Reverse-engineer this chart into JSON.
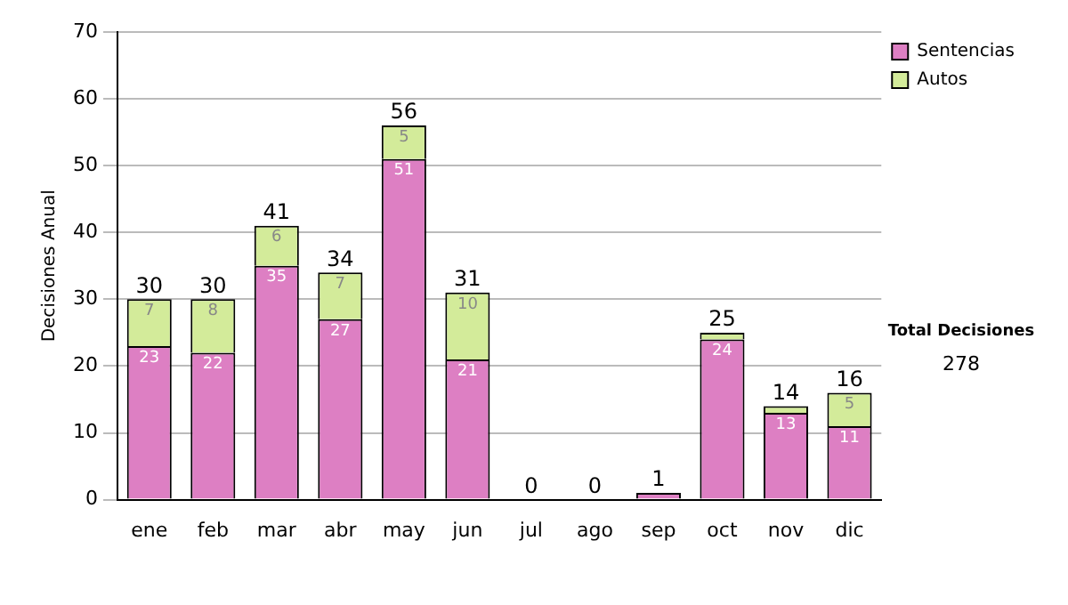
{
  "chart_data": {
    "type": "bar",
    "stacked": true,
    "ylabel": "Decisiones Anual",
    "categories": [
      "ene",
      "feb",
      "mar",
      "abr",
      "may",
      "jun",
      "jul",
      "ago",
      "sep",
      "oct",
      "nov",
      "dic"
    ],
    "series": [
      {
        "name": "Sentencias",
        "color": "#dd7fc3",
        "values": [
          23,
          22,
          35,
          27,
          51,
          21,
          0,
          0,
          1,
          24,
          13,
          11
        ],
        "value_labels": [
          "23",
          "22",
          "35",
          "27",
          "51",
          "21",
          null,
          null,
          null,
          "24",
          "13",
          "11"
        ]
      },
      {
        "name": "Autos",
        "color": "#d3eb9a",
        "values": [
          7,
          8,
          6,
          7,
          5,
          10,
          0,
          0,
          0,
          1,
          1,
          5
        ],
        "value_labels": [
          "7",
          "8",
          "6",
          "7",
          "5",
          "10",
          null,
          null,
          null,
          null,
          null,
          "5"
        ]
      }
    ],
    "totals": [
      "30",
      "30",
      "41",
      "34",
      "56",
      "31",
      "0",
      "0",
      "1",
      "25",
      "14",
      "16"
    ],
    "ylim": [
      0,
      70
    ],
    "yticks": [
      0,
      10,
      20,
      30,
      40,
      50,
      60,
      70
    ],
    "grid": "y",
    "legend": "right",
    "annotations": [
      "Total Decisiones",
      "278"
    ]
  }
}
